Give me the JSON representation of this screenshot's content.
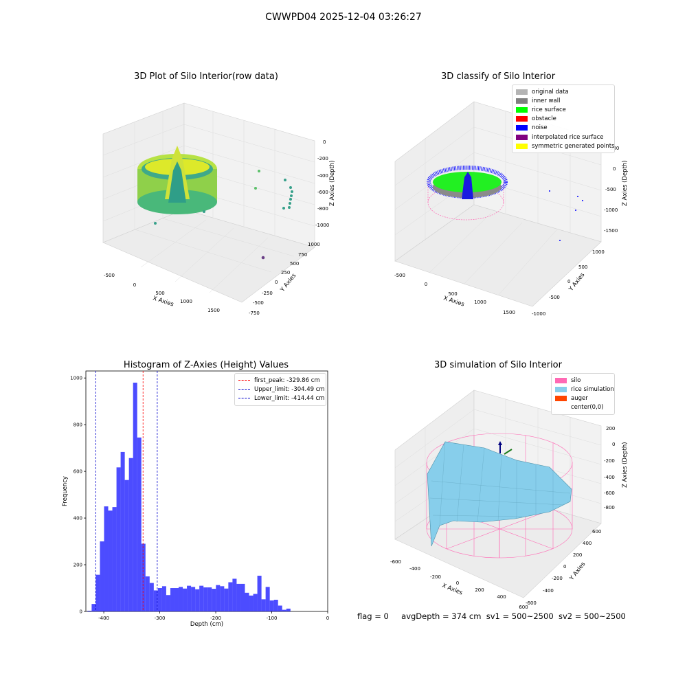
{
  "suptitle": "CWWPD04 2025-12-04 03:26:27",
  "raw_plot": {
    "title": "3D Plot of Silo Interior(row data)",
    "xlabel": "X Axies",
    "ylabel": "Y Axies",
    "zlabel": "Z Axies (Depth)",
    "xticks": [
      "-500",
      "0",
      "500",
      "1000",
      "1500"
    ],
    "yticks": [
      "-750",
      "-500",
      "-250",
      "0",
      "250",
      "500",
      "750",
      "1000"
    ],
    "zticks": [
      "0",
      "-200",
      "-400",
      "-600",
      "-800",
      "-1000"
    ]
  },
  "classify_plot": {
    "title": "3D classify of Silo Interior",
    "xlabel": "X Axies",
    "ylabel": "Y Axies",
    "zlabel": "Z Axies (Depth)",
    "xticks": [
      "-500",
      "0",
      "500",
      "1000",
      "1500"
    ],
    "yticks": [
      "-1000",
      "-500",
      "0",
      "500",
      "1000"
    ],
    "zticks": [
      "500",
      "0",
      "-500",
      "-1000",
      "-1500"
    ],
    "legend": [
      {
        "label": "original data",
        "color": "#b4b4b4"
      },
      {
        "label": "inner wall",
        "color": "#808080"
      },
      {
        "label": "rice surface",
        "color": "#00ff00"
      },
      {
        "label": "obstacle",
        "color": "#ff0000"
      },
      {
        "label": "noise",
        "color": "#0000ff"
      },
      {
        "label": "interpolated rice surface",
        "color": "#800080"
      },
      {
        "label": "symmetric generated points",
        "color": "#ffff00"
      }
    ]
  },
  "histogram": {
    "title": "Histogram of Z-Axies (Height) Values",
    "xlabel": "Depth (cm)",
    "ylabel": "Frequency",
    "xticks": [
      "-400",
      "-300",
      "-200",
      "-100",
      "0"
    ],
    "yticks": [
      "0",
      "200",
      "400",
      "600",
      "800",
      "1000"
    ],
    "legend": [
      {
        "label": "first_peak: -329.86 cm",
        "color": "#ff0000"
      },
      {
        "label": "Upper_limit: -304.49 cm",
        "color": "#0000cc"
      },
      {
        "label": "Lower_limit: -414.44 cm",
        "color": "#0000cc"
      }
    ]
  },
  "chart_data": {
    "type": "bar",
    "title": "Histogram of Z-Axies (Height) Values",
    "xlabel": "Depth (cm)",
    "ylabel": "Frequency",
    "xlim": [
      -432,
      0
    ],
    "ylim": [
      0,
      1030
    ],
    "bar_color": "#0000ff",
    "bin_width": 7.4,
    "bins": [
      {
        "x": -425.5,
        "y": 3
      },
      {
        "x": -418,
        "y": 32
      },
      {
        "x": -410.6,
        "y": 157
      },
      {
        "x": -403.2,
        "y": 300
      },
      {
        "x": -395.8,
        "y": 450
      },
      {
        "x": -388.4,
        "y": 432
      },
      {
        "x": -381,
        "y": 447
      },
      {
        "x": -373.6,
        "y": 617
      },
      {
        "x": -366.2,
        "y": 683
      },
      {
        "x": -358.8,
        "y": 563
      },
      {
        "x": -351.4,
        "y": 657
      },
      {
        "x": -344,
        "y": 980
      },
      {
        "x": -336.6,
        "y": 745
      },
      {
        "x": -329.2,
        "y": 290
      },
      {
        "x": -321.8,
        "y": 150
      },
      {
        "x": -314.4,
        "y": 122
      },
      {
        "x": -307,
        "y": 90
      },
      {
        "x": -299.6,
        "y": 100
      },
      {
        "x": -292.2,
        "y": 108
      },
      {
        "x": -284.8,
        "y": 70
      },
      {
        "x": -277.4,
        "y": 100
      },
      {
        "x": -270,
        "y": 100
      },
      {
        "x": -262.6,
        "y": 105
      },
      {
        "x": -255.2,
        "y": 98
      },
      {
        "x": -247.8,
        "y": 110
      },
      {
        "x": -240.4,
        "y": 105
      },
      {
        "x": -233,
        "y": 95
      },
      {
        "x": -225.6,
        "y": 110
      },
      {
        "x": -218.2,
        "y": 103
      },
      {
        "x": -210.8,
        "y": 103
      },
      {
        "x": -203.4,
        "y": 97
      },
      {
        "x": -196,
        "y": 113
      },
      {
        "x": -188.6,
        "y": 108
      },
      {
        "x": -181.2,
        "y": 98
      },
      {
        "x": -173.8,
        "y": 125
      },
      {
        "x": -166.4,
        "y": 140
      },
      {
        "x": -159,
        "y": 118
      },
      {
        "x": -151.6,
        "y": 118
      },
      {
        "x": -144.2,
        "y": 80
      },
      {
        "x": -136.8,
        "y": 68
      },
      {
        "x": -129.4,
        "y": 75
      },
      {
        "x": -122,
        "y": 153
      },
      {
        "x": -114.6,
        "y": 52
      },
      {
        "x": -107.2,
        "y": 105
      },
      {
        "x": -99.8,
        "y": 47
      },
      {
        "x": -92.4,
        "y": 50
      },
      {
        "x": -85,
        "y": 25
      },
      {
        "x": -77.6,
        "y": 7
      },
      {
        "x": -70.2,
        "y": 12
      }
    ],
    "vlines": [
      {
        "name": "first_peak: -329.86 cm",
        "x": -329.86,
        "color": "#ff0000"
      },
      {
        "name": "Upper_limit: -304.49 cm",
        "x": -304.49,
        "color": "#0000cc"
      },
      {
        "name": "Lower_limit: -414.44 cm",
        "x": -414.44,
        "color": "#0000cc"
      }
    ]
  },
  "simulation_plot": {
    "title": "3D simulation of Silo Interior",
    "xlabel": "X Axies",
    "ylabel": "Y Axies",
    "zlabel": "Z Axies (Depth)",
    "xticks": [
      "-600",
      "-400",
      "-200",
      "0",
      "200",
      "400",
      "600"
    ],
    "yticks": [
      "-600",
      "-400",
      "-200",
      "0",
      "200",
      "400",
      "600"
    ],
    "zticks": [
      "200",
      "0",
      "-200",
      "-400",
      "-600",
      "-800"
    ],
    "legend": [
      {
        "label": "silo",
        "color": "#ff69b4"
      },
      {
        "label": "rice simulation",
        "color": "#87ceeb"
      },
      {
        "label": "auger",
        "color": "#ff4500"
      },
      {
        "label": "center(0,0)",
        "color": ""
      }
    ]
  },
  "status": {
    "flag": "flag = 0",
    "avg_depth": "avgDepth = 374 cm",
    "sv1": "sv1 = 500~2500",
    "sv2": "sv2 = 500~2500"
  }
}
